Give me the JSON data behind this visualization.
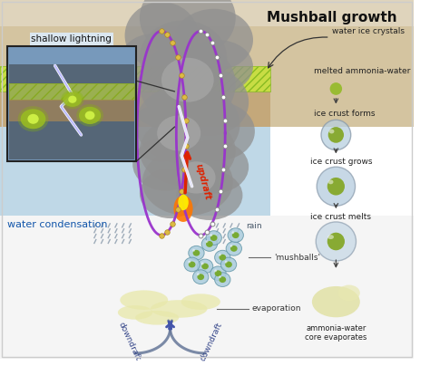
{
  "title": "Mushball growth",
  "fig_width": 4.74,
  "fig_height": 4.04,
  "bg_color": "#ffffff",
  "labels": {
    "shallow_lightning": "shallow lightning",
    "water_condensation": "water condensation",
    "updraft": "updraft",
    "rain": "rain",
    "mushballs": "'mushballs'",
    "evaporation": "evaporation",
    "downdraft": "downdraft",
    "water_ice_crystals": "water ice crystals",
    "melted_ammonia_water": "melted ammonia-water",
    "ice_crust_forms": "ice crust forms",
    "ice_crust_grows": "ice crust grows",
    "ice_crust_melts": "ice crust melts",
    "ammonia_core": "ammonia-water\ncore evaporates"
  },
  "layer_colors": {
    "top_bg": "#e8dcc8",
    "green_stripe": "#c8e040",
    "mid_brown": "#c8a870",
    "blue_region": "#b0cce0",
    "white_bottom": "#f8f8f8"
  },
  "purple_line": "#9933cc",
  "arrow_red": "#dd2200",
  "arrow_orange": "#ff7700",
  "arrow_yellow": "#ffee00",
  "arrow_blue": "#4455aa",
  "rain_color": "#8899aa",
  "mushball_outer": "#aaccdd",
  "mushball_inner": "#88aa44",
  "evap_color": "#e8e8aa",
  "inset_bg": "#6688aa",
  "inset_border": "#222222"
}
